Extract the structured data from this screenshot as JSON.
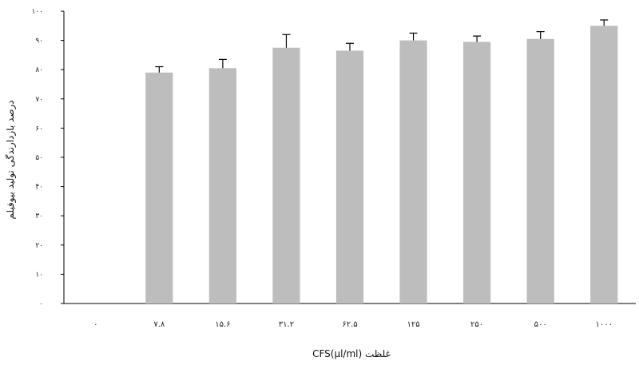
{
  "chart_data": {
    "type": "bar",
    "title": "",
    "xlabel": "غلظت CFS(µl/ml)",
    "ylabel": "درصد بازدارندگی تولید بیوفیلم",
    "categories": [
      "۰",
      "۷.۸",
      "۱۵.۶",
      "۳۱.۲",
      "۶۲.۵",
      "۱۲۵",
      "۲۵۰",
      "۵۰۰",
      "۱۰۰۰"
    ],
    "values": [
      0,
      79,
      80.5,
      87.5,
      86.5,
      90,
      89.5,
      90.5,
      95
    ],
    "errors": [
      0,
      2,
      3,
      4.5,
      2.5,
      2.5,
      2,
      2.5,
      2
    ],
    "ylim": [
      0,
      100
    ],
    "yticks": [
      0,
      10,
      20,
      30,
      40,
      50,
      60,
      70,
      80,
      90,
      100
    ],
    "ytick_labels": [
      "۰",
      "۱۰",
      "۲۰",
      "۳۰",
      "۴۰",
      "۵۰",
      "۶۰",
      "۷۰",
      "۸۰",
      "۹۰",
      "۱۰۰"
    ],
    "grid": false,
    "legend": "none",
    "colors": {
      "bar": "#bdbdbd",
      "axis": "#000000",
      "error": "#000000"
    }
  }
}
